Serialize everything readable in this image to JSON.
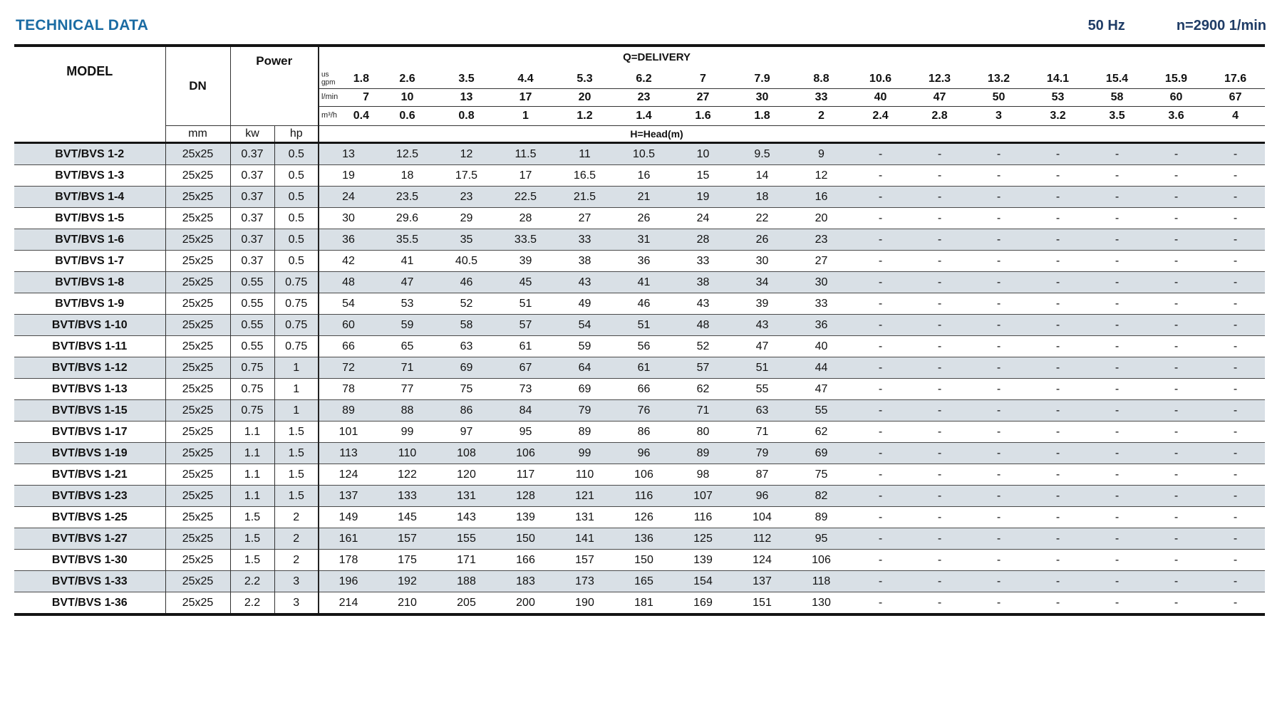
{
  "header": {
    "title": "TECHNICAL DATA",
    "frequency": "50 Hz",
    "speed": "n=2900 1/min"
  },
  "table": {
    "labels": {
      "model": "MODEL",
      "dn": "DN",
      "dn_unit": "mm",
      "power": "Power",
      "kw": "kw",
      "hp": "hp",
      "delivery": "Q=DELIVERY",
      "head": "H=Head(m)"
    },
    "units": [
      {
        "label": "us gpm",
        "values": [
          "1.8",
          "2.6",
          "3.5",
          "4.4",
          "5.3",
          "6.2",
          "7",
          "7.9",
          "8.8",
          "10.6",
          "12.3",
          "13.2",
          "14.1",
          "15.4",
          "15.9",
          "17.6"
        ]
      },
      {
        "label": "l/min",
        "values": [
          "7",
          "10",
          "13",
          "17",
          "20",
          "23",
          "27",
          "30",
          "33",
          "40",
          "47",
          "50",
          "53",
          "58",
          "60",
          "67"
        ]
      },
      {
        "label": "m³/h",
        "values": [
          "0.4",
          "0.6",
          "0.8",
          "1",
          "1.2",
          "1.4",
          "1.6",
          "1.8",
          "2",
          "2.4",
          "2.8",
          "3",
          "3.2",
          "3.5",
          "3.6",
          "4"
        ]
      }
    ],
    "rows": [
      {
        "model": "BVT/BVS 1-2",
        "dn": "25x25",
        "kw": "0.37",
        "hp": "0.5",
        "heads": [
          "13",
          "12.5",
          "12",
          "11.5",
          "11",
          "10.5",
          "10",
          "9.5",
          "9",
          "-",
          "-",
          "-",
          "-",
          "-",
          "-",
          "-"
        ]
      },
      {
        "model": "BVT/BVS 1-3",
        "dn": "25x25",
        "kw": "0.37",
        "hp": "0.5",
        "heads": [
          "19",
          "18",
          "17.5",
          "17",
          "16.5",
          "16",
          "15",
          "14",
          "12",
          "-",
          "-",
          "-",
          "-",
          "-",
          "-",
          "-"
        ]
      },
      {
        "model": "BVT/BVS 1-4",
        "dn": "25x25",
        "kw": "0.37",
        "hp": "0.5",
        "heads": [
          "24",
          "23.5",
          "23",
          "22.5",
          "21.5",
          "21",
          "19",
          "18",
          "16",
          "-",
          "-",
          "-",
          "-",
          "-",
          "-",
          "-"
        ]
      },
      {
        "model": "BVT/BVS 1-5",
        "dn": "25x25",
        "kw": "0.37",
        "hp": "0.5",
        "heads": [
          "30",
          "29.6",
          "29",
          "28",
          "27",
          "26",
          "24",
          "22",
          "20",
          "-",
          "-",
          "-",
          "-",
          "-",
          "-",
          "-"
        ]
      },
      {
        "model": "BVT/BVS 1-6",
        "dn": "25x25",
        "kw": "0.37",
        "hp": "0.5",
        "heads": [
          "36",
          "35.5",
          "35",
          "33.5",
          "33",
          "31",
          "28",
          "26",
          "23",
          "-",
          "-",
          "-",
          "-",
          "-",
          "-",
          "-"
        ]
      },
      {
        "model": "BVT/BVS 1-7",
        "dn": "25x25",
        "kw": "0.37",
        "hp": "0.5",
        "heads": [
          "42",
          "41",
          "40.5",
          "39",
          "38",
          "36",
          "33",
          "30",
          "27",
          "-",
          "-",
          "-",
          "-",
          "-",
          "-",
          "-"
        ]
      },
      {
        "model": "BVT/BVS 1-8",
        "dn": "25x25",
        "kw": "0.55",
        "hp": "0.75",
        "heads": [
          "48",
          "47",
          "46",
          "45",
          "43",
          "41",
          "38",
          "34",
          "30",
          "-",
          "-",
          "-",
          "-",
          "-",
          "-",
          "-"
        ]
      },
      {
        "model": "BVT/BVS 1-9",
        "dn": "25x25",
        "kw": "0.55",
        "hp": "0.75",
        "heads": [
          "54",
          "53",
          "52",
          "51",
          "49",
          "46",
          "43",
          "39",
          "33",
          "-",
          "-",
          "-",
          "-",
          "-",
          "-",
          "-"
        ]
      },
      {
        "model": "BVT/BVS 1-10",
        "dn": "25x25",
        "kw": "0.55",
        "hp": "0.75",
        "heads": [
          "60",
          "59",
          "58",
          "57",
          "54",
          "51",
          "48",
          "43",
          "36",
          "-",
          "-",
          "-",
          "-",
          "-",
          "-",
          "-"
        ]
      },
      {
        "model": "BVT/BVS 1-11",
        "dn": "25x25",
        "kw": "0.55",
        "hp": "0.75",
        "heads": [
          "66",
          "65",
          "63",
          "61",
          "59",
          "56",
          "52",
          "47",
          "40",
          "-",
          "-",
          "-",
          "-",
          "-",
          "-",
          "-"
        ]
      },
      {
        "model": "BVT/BVS 1-12",
        "dn": "25x25",
        "kw": "0.75",
        "hp": "1",
        "heads": [
          "72",
          "71",
          "69",
          "67",
          "64",
          "61",
          "57",
          "51",
          "44",
          "-",
          "-",
          "-",
          "-",
          "-",
          "-",
          "-"
        ]
      },
      {
        "model": "BVT/BVS 1-13",
        "dn": "25x25",
        "kw": "0.75",
        "hp": "1",
        "heads": [
          "78",
          "77",
          "75",
          "73",
          "69",
          "66",
          "62",
          "55",
          "47",
          "-",
          "-",
          "-",
          "-",
          "-",
          "-",
          "-"
        ]
      },
      {
        "model": "BVT/BVS 1-15",
        "dn": "25x25",
        "kw": "0.75",
        "hp": "1",
        "heads": [
          "89",
          "88",
          "86",
          "84",
          "79",
          "76",
          "71",
          "63",
          "55",
          "-",
          "-",
          "-",
          "-",
          "-",
          "-",
          "-"
        ]
      },
      {
        "model": "BVT/BVS 1-17",
        "dn": "25x25",
        "kw": "1.1",
        "hp": "1.5",
        "heads": [
          "101",
          "99",
          "97",
          "95",
          "89",
          "86",
          "80",
          "71",
          "62",
          "-",
          "-",
          "-",
          "-",
          "-",
          "-",
          "-"
        ]
      },
      {
        "model": "BVT/BVS 1-19",
        "dn": "25x25",
        "kw": "1.1",
        "hp": "1.5",
        "heads": [
          "113",
          "110",
          "108",
          "106",
          "99",
          "96",
          "89",
          "79",
          "69",
          "-",
          "-",
          "-",
          "-",
          "-",
          "-",
          "-"
        ]
      },
      {
        "model": "BVT/BVS 1-21",
        "dn": "25x25",
        "kw": "1.1",
        "hp": "1.5",
        "heads": [
          "124",
          "122",
          "120",
          "117",
          "110",
          "106",
          "98",
          "87",
          "75",
          "-",
          "-",
          "-",
          "-",
          "-",
          "-",
          "-"
        ]
      },
      {
        "model": "BVT/BVS 1-23",
        "dn": "25x25",
        "kw": "1.1",
        "hp": "1.5",
        "heads": [
          "137",
          "133",
          "131",
          "128",
          "121",
          "116",
          "107",
          "96",
          "82",
          "-",
          "-",
          "-",
          "-",
          "-",
          "-",
          "-"
        ]
      },
      {
        "model": "BVT/BVS 1-25",
        "dn": "25x25",
        "kw": "1.5",
        "hp": "2",
        "heads": [
          "149",
          "145",
          "143",
          "139",
          "131",
          "126",
          "116",
          "104",
          "89",
          "-",
          "-",
          "-",
          "-",
          "-",
          "-",
          "-"
        ]
      },
      {
        "model": "BVT/BVS 1-27",
        "dn": "25x25",
        "kw": "1.5",
        "hp": "2",
        "heads": [
          "161",
          "157",
          "155",
          "150",
          "141",
          "136",
          "125",
          "112",
          "95",
          "-",
          "-",
          "-",
          "-",
          "-",
          "-",
          "-"
        ]
      },
      {
        "model": "BVT/BVS 1-30",
        "dn": "25x25",
        "kw": "1.5",
        "hp": "2",
        "heads": [
          "178",
          "175",
          "171",
          "166",
          "157",
          "150",
          "139",
          "124",
          "106",
          "-",
          "-",
          "-",
          "-",
          "-",
          "-",
          "-"
        ]
      },
      {
        "model": "BVT/BVS 1-33",
        "dn": "25x25",
        "kw": "2.2",
        "hp": "3",
        "heads": [
          "196",
          "192",
          "188",
          "183",
          "173",
          "165",
          "154",
          "137",
          "118",
          "-",
          "-",
          "-",
          "-",
          "-",
          "-",
          "-"
        ]
      },
      {
        "model": "BVT/BVS 1-36",
        "dn": "25x25",
        "kw": "2.2",
        "hp": "3",
        "heads": [
          "214",
          "210",
          "205",
          "200",
          "190",
          "181",
          "169",
          "151",
          "130",
          "-",
          "-",
          "-",
          "-",
          "-",
          "-",
          "-"
        ]
      }
    ]
  }
}
